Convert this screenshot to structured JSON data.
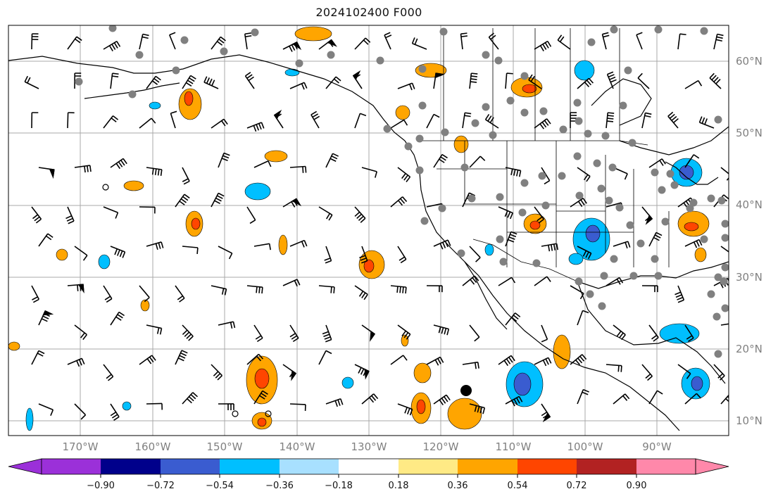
{
  "title": "2024102400 F000",
  "map": {
    "lat_labels": [
      "60°N",
      "50°N",
      "40°N",
      "30°N",
      "20°N",
      "10°N"
    ],
    "lon_labels": [
      "170°W",
      "160°W",
      "150°W",
      "140°W",
      "130°W",
      "120°W",
      "110°W",
      "100°W",
      "90°W"
    ],
    "coastline_color": "#000000",
    "grid_color": "#a8a8a8"
  },
  "colorbar": {
    "colors": [
      "#9b30d9",
      "#00008b",
      "#3a5cd0",
      "#00bfff",
      "#a8e0ff",
      "#ffffff",
      "#ffea85",
      "#ffa500",
      "#ff4500",
      "#b22222",
      "#ff88aa"
    ],
    "tick_labels": [
      "−0.90",
      "−0.72",
      "−0.54",
      "−0.36",
      "−0.18",
      "0.18",
      "0.36",
      "0.54",
      "0.72",
      "0.90"
    ]
  },
  "legend_colors": {
    "orange": "#ffa500",
    "red": "#ff4500",
    "cyan": "#00bfff",
    "blue": "#3a5cd0",
    "station": "#808080"
  }
}
